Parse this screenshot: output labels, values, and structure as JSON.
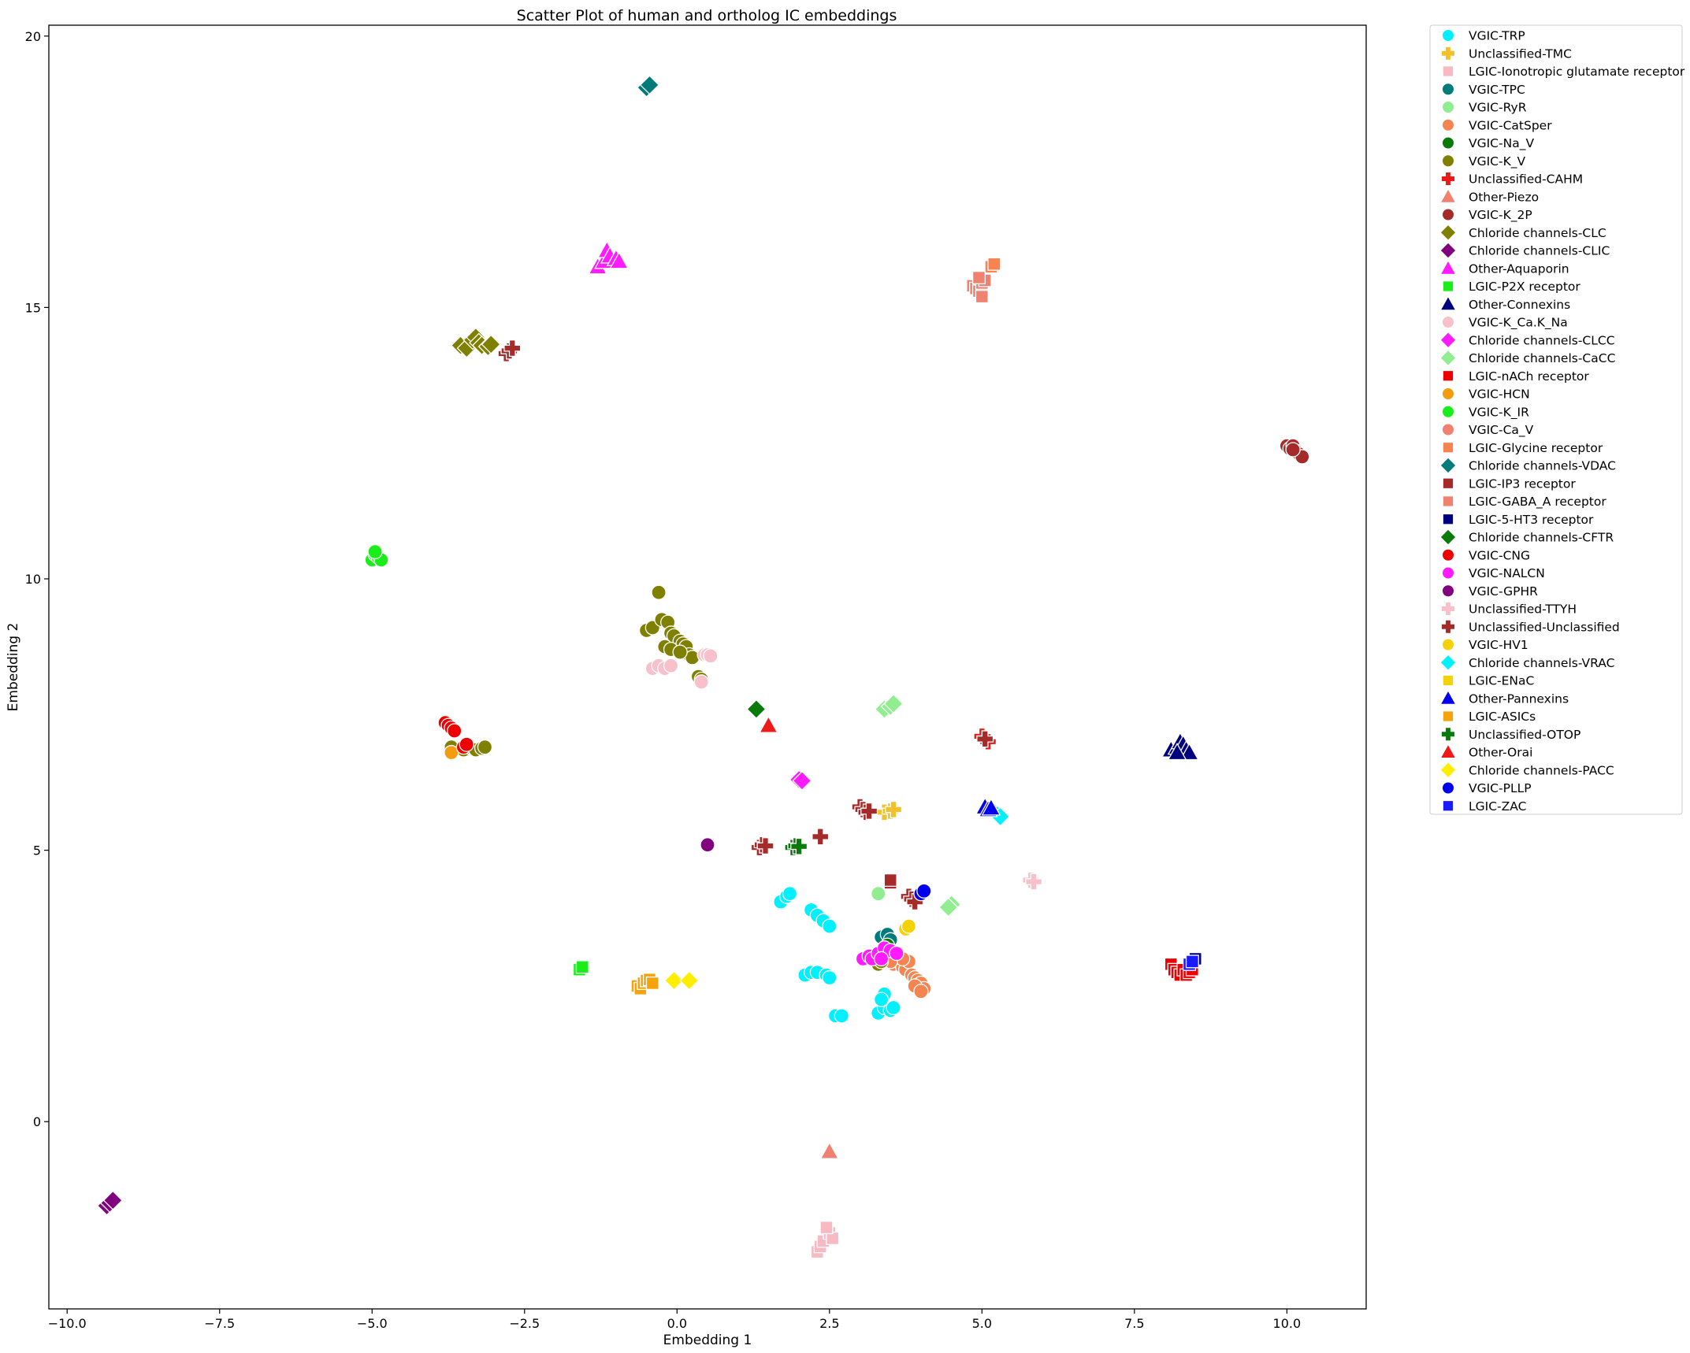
{
  "chart_data": {
    "type": "scatter",
    "title": "Scatter Plot of human and ortholog IC embeddings",
    "xlabel": "Embedding 1",
    "ylabel": "Embedding 2",
    "xlim": [
      -10.3,
      11.3
    ],
    "ylim": [
      -3.45,
      20.2
    ],
    "xticks": [
      -10.0,
      -7.5,
      -5.0,
      -2.5,
      0.0,
      2.5,
      5.0,
      7.5,
      10.0
    ],
    "xtick_labels": [
      "−10.0",
      "−7.5",
      "−5.0",
      "−2.5",
      "0.0",
      "2.5",
      "5.0",
      "7.5",
      "10.0"
    ],
    "yticks": [
      0,
      5,
      10,
      15,
      20
    ],
    "ytick_labels": [
      "0",
      "5",
      "10",
      "15",
      "20"
    ],
    "grid": false,
    "legend_position": "outside-right-top",
    "series": [
      {
        "name": "VGIC-TRP",
        "color": "#00f0ff",
        "marker": "circle",
        "points": [
          [
            1.7,
            4.05
          ],
          [
            1.8,
            4.15
          ],
          [
            1.85,
            4.2
          ],
          [
            2.2,
            3.9
          ],
          [
            2.3,
            3.8
          ],
          [
            2.4,
            3.7
          ],
          [
            2.5,
            3.6
          ],
          [
            2.1,
            2.7
          ],
          [
            2.2,
            2.75
          ],
          [
            2.3,
            2.75
          ],
          [
            2.45,
            2.7
          ],
          [
            2.5,
            2.65
          ],
          [
            2.6,
            1.95
          ],
          [
            2.7,
            1.95
          ],
          [
            3.3,
            2.0
          ],
          [
            3.4,
            2.1
          ],
          [
            3.5,
            2.05
          ],
          [
            3.55,
            2.1
          ],
          [
            3.4,
            2.35
          ],
          [
            3.35,
            2.25
          ]
        ]
      },
      {
        "name": "Unclassified-TMC",
        "color": "#f2c02a",
        "marker": "plus",
        "points": [
          [
            3.4,
            5.7
          ],
          [
            3.5,
            5.72
          ],
          [
            3.55,
            5.75
          ]
        ]
      },
      {
        "name": "LGIC-Ionotropic glutamate receptor",
        "color": "#f7b9c2",
        "marker": "square",
        "points": [
          [
            2.3,
            -2.4
          ],
          [
            2.35,
            -2.3
          ],
          [
            2.4,
            -2.2
          ],
          [
            2.5,
            -2.05
          ],
          [
            2.55,
            -2.15
          ],
          [
            2.45,
            -1.95
          ]
        ]
      },
      {
        "name": "VGIC-TPC",
        "color": "#007b7b",
        "marker": "circle",
        "points": [
          [
            3.35,
            3.4
          ],
          [
            3.45,
            3.45
          ],
          [
            3.5,
            3.35
          ]
        ]
      },
      {
        "name": "VGIC-RyR",
        "color": "#90ee90",
        "marker": "circle",
        "points": [
          [
            3.3,
            4.2
          ]
        ]
      },
      {
        "name": "VGIC-CatSper",
        "color": "#f58450",
        "marker": "circle",
        "points": [
          [
            3.55,
            2.9
          ],
          [
            3.6,
            3.0
          ],
          [
            3.65,
            2.95
          ],
          [
            3.7,
            2.85
          ],
          [
            3.75,
            2.8
          ],
          [
            3.8,
            2.95
          ],
          [
            3.85,
            2.7
          ],
          [
            3.9,
            2.65
          ],
          [
            3.95,
            2.6
          ],
          [
            4.0,
            2.55
          ],
          [
            4.05,
            2.45
          ],
          [
            3.9,
            2.5
          ],
          [
            4.0,
            2.4
          ],
          [
            3.7,
            3.0
          ],
          [
            3.5,
            2.95
          ],
          [
            3.3,
            3.05
          ]
        ]
      },
      {
        "name": "VGIC-Na_V",
        "color": "#0a7a0a",
        "marker": "circle",
        "points": [
          [
            3.4,
            3.2
          ],
          [
            3.45,
            3.25
          ],
          [
            3.3,
            3.1
          ]
        ]
      },
      {
        "name": "VGIC-K_V",
        "color": "#808000",
        "marker": "circle",
        "points": [
          [
            -0.3,
            9.75
          ],
          [
            -0.5,
            9.05
          ],
          [
            -0.4,
            9.1
          ],
          [
            -0.25,
            9.25
          ],
          [
            -0.15,
            9.2
          ],
          [
            -0.1,
            9.0
          ],
          [
            -0.05,
            8.95
          ],
          [
            0.05,
            8.85
          ],
          [
            0.1,
            8.8
          ],
          [
            0.15,
            8.75
          ],
          [
            0.2,
            8.6
          ],
          [
            0.25,
            8.55
          ],
          [
            -0.2,
            8.75
          ],
          [
            -0.1,
            8.7
          ],
          [
            0.05,
            8.65
          ],
          [
            0.35,
            8.2
          ],
          [
            0.4,
            8.15
          ],
          [
            -3.7,
            6.9
          ],
          [
            -3.5,
            6.85
          ],
          [
            -3.4,
            6.9
          ],
          [
            -3.3,
            6.85
          ],
          [
            -3.2,
            6.88
          ],
          [
            -3.15,
            6.9
          ],
          [
            3.3,
            2.9
          ],
          [
            3.35,
            2.95
          ]
        ]
      },
      {
        "name": "Unclassified-CAHM",
        "color": "#e81b1b",
        "marker": "plus",
        "points": [
          [
            5.0,
            7.1
          ],
          [
            5.05,
            7.05
          ],
          [
            5.1,
            7.0
          ]
        ]
      },
      {
        "name": "Other-Piezo",
        "color": "#f08070",
        "marker": "triangle-up",
        "points": [
          [
            2.5,
            -0.55
          ]
        ]
      },
      {
        "name": "VGIC-K_2P",
        "color": "#a52a2a",
        "marker": "circle",
        "points": [
          [
            10.0,
            12.45
          ],
          [
            10.05,
            12.4
          ],
          [
            10.1,
            12.45
          ],
          [
            10.15,
            12.35
          ],
          [
            10.2,
            12.3
          ],
          [
            10.25,
            12.25
          ],
          [
            10.1,
            12.38
          ]
        ]
      },
      {
        "name": "Chloride channels-CLC",
        "color": "#808000",
        "marker": "diamond",
        "points": [
          [
            -3.55,
            14.3
          ],
          [
            -3.45,
            14.25
          ],
          [
            -3.35,
            14.4
          ],
          [
            -3.3,
            14.45
          ],
          [
            -3.25,
            14.35
          ],
          [
            -3.2,
            14.3
          ],
          [
            -3.1,
            14.28
          ],
          [
            -3.05,
            14.32
          ]
        ]
      },
      {
        "name": "Chloride channels-CLIC",
        "color": "#800080",
        "marker": "diamond",
        "points": [
          [
            -9.35,
            -1.55
          ],
          [
            -9.3,
            -1.5
          ],
          [
            -9.25,
            -1.45
          ]
        ]
      },
      {
        "name": "Other-Aquaporin",
        "color": "#ff1aff",
        "marker": "triangle-up",
        "points": [
          [
            -1.3,
            15.75
          ],
          [
            -1.2,
            15.85
          ],
          [
            -1.15,
            16.05
          ],
          [
            -1.1,
            15.95
          ],
          [
            -1.0,
            15.9
          ],
          [
            -0.95,
            15.85
          ]
        ]
      },
      {
        "name": "LGIC-P2X receptor",
        "color": "#1aee1a",
        "marker": "square",
        "points": [
          [
            -1.6,
            2.8
          ],
          [
            -1.55,
            2.85
          ]
        ]
      },
      {
        "name": "Other-Connexins",
        "color": "#00007f",
        "marker": "triangle-up",
        "points": [
          [
            8.1,
            6.85
          ],
          [
            8.2,
            6.9
          ],
          [
            8.25,
            7.0
          ],
          [
            8.3,
            6.95
          ],
          [
            8.35,
            6.85
          ],
          [
            8.4,
            6.8
          ],
          [
            8.2,
            6.8
          ]
        ]
      },
      {
        "name": "VGIC-K_Ca.K_Na",
        "color": "#f8c0cb",
        "marker": "circle",
        "points": [
          [
            -0.4,
            8.35
          ],
          [
            -0.3,
            8.4
          ],
          [
            -0.2,
            8.35
          ],
          [
            -0.1,
            8.4
          ],
          [
            0.45,
            8.6
          ],
          [
            0.5,
            8.6
          ],
          [
            0.55,
            8.58
          ],
          [
            0.4,
            8.1
          ]
        ]
      },
      {
        "name": "Chloride channels-CLCC",
        "color": "#ff1aff",
        "marker": "diamond",
        "points": [
          [
            2.0,
            6.3
          ],
          [
            2.05,
            6.28
          ]
        ]
      },
      {
        "name": "Chloride channels-CaCC",
        "color": "#90ee90",
        "marker": "diamond",
        "points": [
          [
            3.4,
            7.6
          ],
          [
            3.5,
            7.65
          ],
          [
            3.55,
            7.7
          ],
          [
            4.5,
            4.0
          ],
          [
            4.45,
            3.95
          ]
        ]
      },
      {
        "name": "LGIC-nACh receptor",
        "color": "#ee0000",
        "marker": "square",
        "points": [
          [
            8.1,
            2.9
          ],
          [
            8.15,
            2.8
          ],
          [
            8.2,
            2.75
          ],
          [
            8.25,
            2.7
          ],
          [
            8.3,
            2.8
          ],
          [
            8.35,
            2.7
          ],
          [
            8.4,
            2.75
          ],
          [
            8.45,
            2.8
          ]
        ]
      },
      {
        "name": "VGIC-HCN",
        "color": "#f39c12",
        "marker": "circle",
        "points": [
          [
            -3.7,
            6.8
          ]
        ]
      },
      {
        "name": "VGIC-K_IR",
        "color": "#1aee1a",
        "marker": "circle",
        "points": [
          [
            -5.0,
            10.35
          ],
          [
            -4.95,
            10.45
          ],
          [
            -4.9,
            10.4
          ],
          [
            -4.85,
            10.35
          ],
          [
            -4.95,
            10.5
          ]
        ]
      },
      {
        "name": "VGIC-Ca_V",
        "color": "#f08070",
        "marker": "circle",
        "points": []
      },
      {
        "name": "LGIC-Glycine receptor",
        "color": "#f58450",
        "marker": "square",
        "points": [
          [
            5.15,
            15.75
          ],
          [
            5.2,
            15.8
          ]
        ]
      },
      {
        "name": "Chloride channels-VDAC",
        "color": "#007b7b",
        "marker": "diamond",
        "points": [
          [
            -0.5,
            19.05
          ],
          [
            -0.45,
            19.1
          ]
        ]
      },
      {
        "name": "LGIC-IP3 receptor",
        "color": "#a52a2a",
        "marker": "square",
        "points": [
          [
            3.5,
            4.4
          ],
          [
            3.5,
            4.45
          ]
        ]
      },
      {
        "name": "LGIC-GABA_A receptor",
        "color": "#f08070",
        "marker": "square",
        "points": [
          [
            4.85,
            15.4
          ],
          [
            4.9,
            15.35
          ],
          [
            4.95,
            15.3
          ],
          [
            5.0,
            15.45
          ],
          [
            5.05,
            15.5
          ],
          [
            5.0,
            15.2
          ],
          [
            4.95,
            15.55
          ]
        ]
      },
      {
        "name": "LGIC-5-HT3 receptor",
        "color": "#00007f",
        "marker": "square",
        "points": [
          [
            8.45,
            2.95
          ],
          [
            8.5,
            3.0
          ]
        ]
      },
      {
        "name": "Chloride channels-CFTR",
        "color": "#0a7a0a",
        "marker": "diamond",
        "points": [
          [
            1.3,
            7.6
          ]
        ]
      },
      {
        "name": "VGIC-CNG",
        "color": "#ee0000",
        "marker": "circle",
        "points": [
          [
            -3.8,
            7.35
          ],
          [
            -3.75,
            7.3
          ],
          [
            -3.7,
            7.25
          ],
          [
            -3.65,
            7.2
          ],
          [
            -3.5,
            6.9
          ],
          [
            -3.45,
            6.95
          ]
        ]
      },
      {
        "name": "VGIC-NALCN",
        "color": "#ff1aff",
        "marker": "circle",
        "points": [
          [
            3.05,
            3.0
          ],
          [
            3.15,
            3.05
          ],
          [
            3.2,
            3.0
          ],
          [
            3.3,
            3.1
          ],
          [
            3.4,
            3.2
          ],
          [
            3.5,
            3.15
          ],
          [
            3.6,
            3.1
          ],
          [
            3.35,
            3.0
          ]
        ]
      },
      {
        "name": "VGIC-GPHR",
        "color": "#800080",
        "marker": "circle",
        "points": [
          [
            0.5,
            5.1
          ]
        ]
      },
      {
        "name": "Unclassified-TTYH",
        "color": "#f8c0cb",
        "marker": "plus",
        "points": [
          [
            5.8,
            4.45
          ],
          [
            5.85,
            4.42
          ]
        ]
      },
      {
        "name": "Unclassified-Unclassified",
        "color": "#a52a2a",
        "marker": "plus",
        "points": [
          [
            -2.8,
            14.15
          ],
          [
            -2.75,
            14.2
          ],
          [
            -2.7,
            14.25
          ],
          [
            3.0,
            5.8
          ],
          [
            3.05,
            5.75
          ],
          [
            3.1,
            5.7
          ],
          [
            3.15,
            5.72
          ],
          [
            1.35,
            5.05
          ],
          [
            1.4,
            5.1
          ],
          [
            1.45,
            5.08
          ],
          [
            2.35,
            5.25
          ],
          [
            3.8,
            4.15
          ],
          [
            3.85,
            4.1
          ],
          [
            3.9,
            4.05
          ],
          [
            5.05,
            7.05
          ]
        ]
      },
      {
        "name": "VGIC-HV1",
        "color": "#f5d10a",
        "marker": "circle",
        "points": [
          [
            3.75,
            3.55
          ],
          [
            3.8,
            3.6
          ]
        ]
      },
      {
        "name": "Chloride channels-VRAC",
        "color": "#00f0ff",
        "marker": "diamond",
        "points": [
          [
            5.2,
            5.7
          ],
          [
            5.25,
            5.65
          ],
          [
            5.3,
            5.62
          ]
        ]
      },
      {
        "name": "LGIC-ENaC",
        "color": "#f5d10a",
        "marker": "square",
        "points": []
      },
      {
        "name": "Other-Pannexins",
        "color": "#0000ee",
        "marker": "triangle-up",
        "points": [
          [
            5.05,
            5.8
          ],
          [
            5.1,
            5.75
          ],
          [
            5.15,
            5.78
          ]
        ]
      },
      {
        "name": "LGIC-ASICs",
        "color": "#f5a30a",
        "marker": "square",
        "points": [
          [
            -0.65,
            2.5
          ],
          [
            -0.6,
            2.45
          ],
          [
            -0.55,
            2.55
          ],
          [
            -0.5,
            2.6
          ],
          [
            -0.45,
            2.62
          ],
          [
            -0.4,
            2.55
          ]
        ]
      },
      {
        "name": "Unclassified-OTOP",
        "color": "#0a7a0a",
        "marker": "plus",
        "points": [
          [
            1.9,
            5.05
          ],
          [
            1.95,
            5.08
          ],
          [
            2.0,
            5.07
          ]
        ]
      },
      {
        "name": "Other-Orai",
        "color": "#ee1a1a",
        "marker": "triangle-up",
        "points": [
          [
            1.5,
            7.3
          ]
        ]
      },
      {
        "name": "Chloride channels-PACC",
        "color": "#ffee00",
        "marker": "diamond",
        "points": [
          [
            -0.05,
            2.6
          ],
          [
            0.2,
            2.6
          ]
        ]
      },
      {
        "name": "VGIC-PLLP",
        "color": "#0000ee",
        "marker": "circle",
        "points": [
          [
            4.0,
            4.2
          ],
          [
            4.05,
            4.25
          ]
        ]
      },
      {
        "name": "LGIC-ZAC",
        "color": "#1a1aff",
        "marker": "square",
        "points": [
          [
            8.4,
            2.9
          ],
          [
            8.45,
            2.95
          ]
        ]
      }
    ]
  }
}
